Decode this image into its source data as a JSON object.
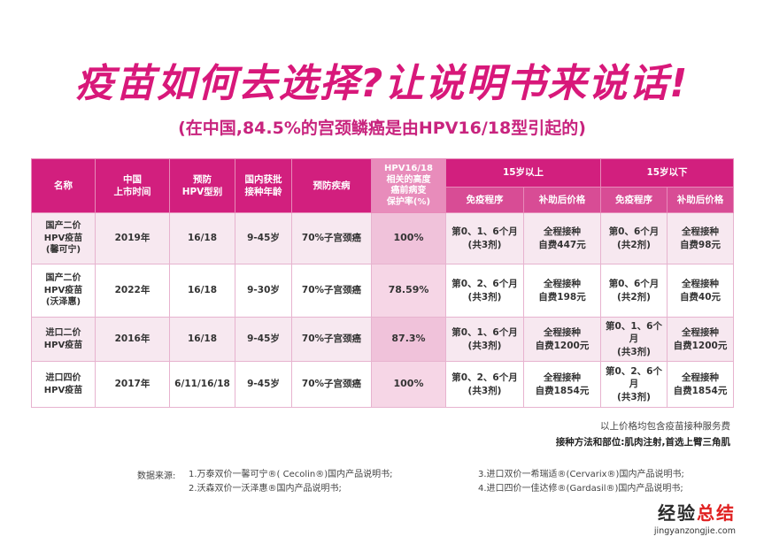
{
  "title": "疫苗如何去选择?让说明书来说话!",
  "subtitle": "(在中国,84.5%的宫颈鳞癌是由HPV16/18型引起的)",
  "table": {
    "headers": {
      "name": "名称",
      "launch": "中国\n上市时间",
      "hpv_type": "预防\nHPV型别",
      "age": "国内获批\n接种年龄",
      "disease": "预防疾病",
      "protection": "HPV16/18\n相关的高度\n癌前病变\n保护率(%)",
      "over15": "15岁以上",
      "under15": "15岁以下",
      "schedule": "免疫程序",
      "price": "补助后价格"
    },
    "rows": [
      {
        "name": "国产二价\nHPV疫苗\n(馨可宁)",
        "launch": "2019年",
        "hpv_type": "16/18",
        "age": "9-45岁",
        "disease": "70%子宫颈癌",
        "protection": "100%",
        "over15_schedule": "第0、1、6个月\n(共3剂)",
        "over15_price": "全程接种\n自费447元",
        "under15_schedule": "第0、6个月\n(共2剂)",
        "under15_price": "全程接种\n自费98元"
      },
      {
        "name": "国产二价\nHPV疫苗\n(沃泽惠)",
        "launch": "2022年",
        "hpv_type": "16/18",
        "age": "9-30岁",
        "disease": "70%子宫颈癌",
        "protection": "78.59%",
        "over15_schedule": "第0、2、6个月\n(共3剂)",
        "over15_price": "全程接种\n自费198元",
        "under15_schedule": "第0、6个月\n(共2剂)",
        "under15_price": "全程接种\n自费40元"
      },
      {
        "name": "进口二价\nHPV疫苗",
        "launch": "2016年",
        "hpv_type": "16/18",
        "age": "9-45岁",
        "disease": "70%子宫颈癌",
        "protection": "87.3%",
        "over15_schedule": "第0、1、6个月\n(共3剂)",
        "over15_price": "全程接种\n自费1200元",
        "under15_schedule": "第0、1、6个月\n(共3剂)",
        "under15_price": "全程接种\n自费1200元"
      },
      {
        "name": "进口四价\nHPV疫苗",
        "launch": "2017年",
        "hpv_type": "6/11/16/18",
        "age": "9-45岁",
        "disease": "70%子宫颈癌",
        "protection": "100%",
        "over15_schedule": "第0、2、6个月\n(共3剂)",
        "over15_price": "全程接种\n自费1854元",
        "under15_schedule": "第0、2、6个月\n(共3剂)",
        "under15_price": "全程接种\n自费1854元"
      }
    ]
  },
  "notes": {
    "price_note": "以上价格均包含疫苗接种服务费",
    "method_note": "接种方法和部位:肌肉注射,首选上臂三角肌"
  },
  "sources": {
    "label": "数据来源:",
    "items": [
      "1.万泰双价一馨可宁®( Cecolin®)国内产品说明书;",
      "2.沃森双价一沃泽惠®国内产品说明书;",
      "3.进口双价一希瑞适®(Cervarix®)国内产品说明书;",
      "4.进口四价一佳达修®(Gardasil®)国内产品说明书;"
    ]
  },
  "watermark": {
    "text_main": "经验",
    "text_accent": "总结",
    "url": "jingyanzongjie.com"
  }
}
